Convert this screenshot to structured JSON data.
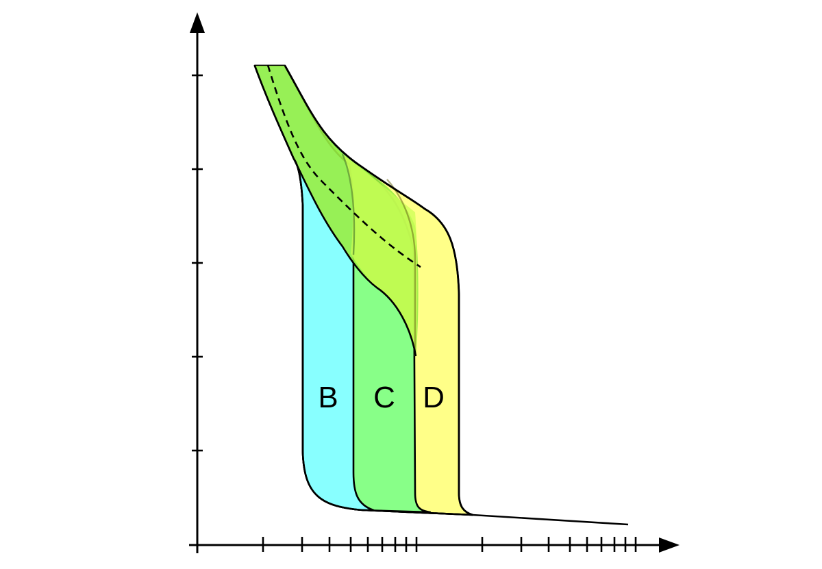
{
  "diagram": {
    "zones": [
      {
        "label": "B",
        "color": "#88FFFF"
      },
      {
        "label": "C",
        "color": "#88FF88"
      },
      {
        "label": "D",
        "color": "#FFFF88"
      }
    ],
    "overlap_color": "#99EE44",
    "x_axis": {
      "scale": "log",
      "decades": 2,
      "minor_ticks_per_decade": 9
    },
    "y_axis": {
      "scale": "linear",
      "tick_count": 5
    },
    "dashed_curve": true
  }
}
